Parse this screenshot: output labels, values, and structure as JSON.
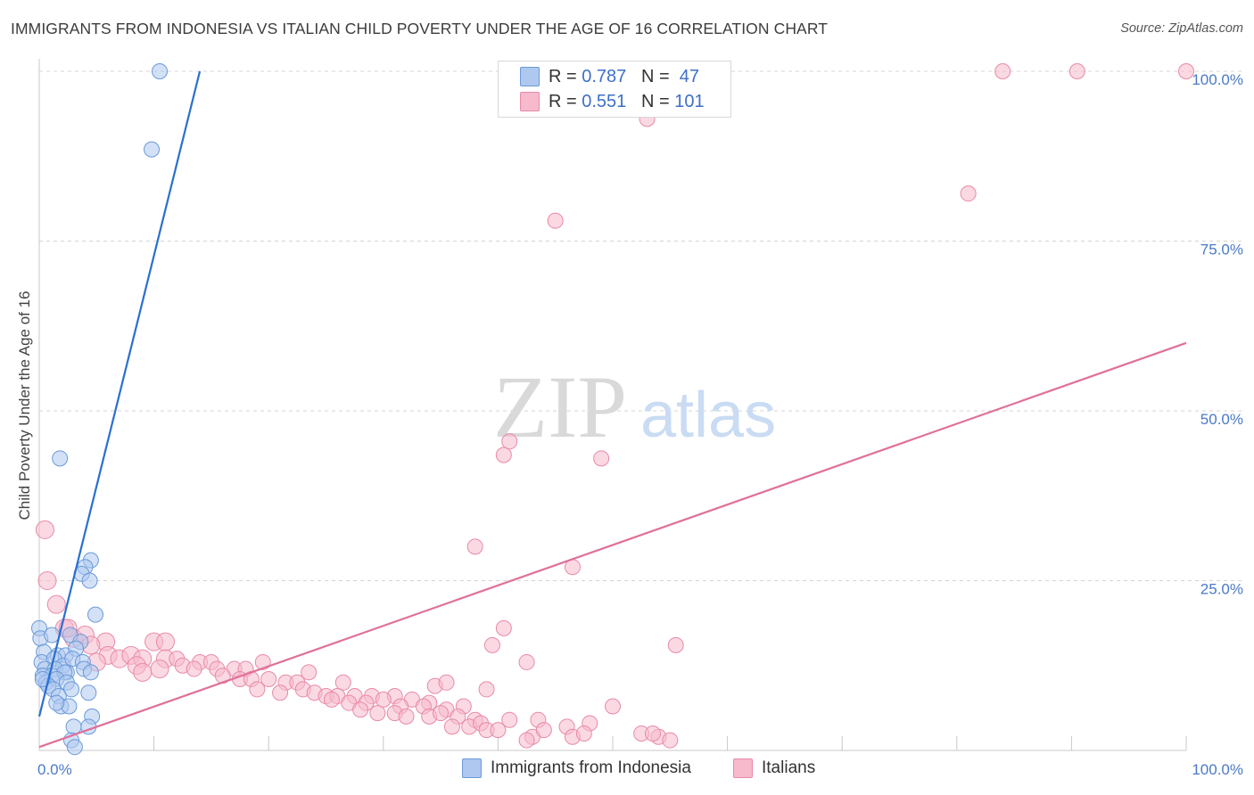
{
  "title": "IMMIGRANTS FROM INDONESIA VS ITALIAN CHILD POVERTY UNDER THE AGE OF 16 CORRELATION CHART",
  "source": "Source: ZipAtlas.com",
  "watermark": {
    "zip": "ZIP",
    "atlas": "atlas"
  },
  "colors": {
    "blue_fill": "#aec8f0",
    "blue_stroke": "#6a9ad8",
    "blue_line": "#2a6fd1",
    "pink_fill": "#f7b9cc",
    "pink_stroke": "#e88aa8",
    "pink_line": "#e0709a",
    "tick_text": "#4a7ac8",
    "grid": "#d4d4d4"
  },
  "legend": {
    "rows": [
      {
        "r_label": "R = ",
        "r_value": "0.787",
        "n_label": "N = ",
        "n_value": "47",
        "series": "blue"
      },
      {
        "r_label": "R = ",
        "r_value": "0.551",
        "n_label": "N = ",
        "n_value": "101",
        "series": "pink"
      }
    ],
    "bottom": [
      "Immigrants from Indonesia",
      "Italians"
    ]
  },
  "chart_data": {
    "type": "scatter",
    "title": "IMMIGRANTS FROM INDONESIA VS ITALIAN CHILD POVERTY UNDER THE AGE OF 16 CORRELATION CHART",
    "xlabel": "",
    "ylabel": "Child Poverty Under the Age of 16",
    "xlim": [
      0,
      100
    ],
    "ylim": [
      0,
      100
    ],
    "x_tick_labels": [
      "0.0%",
      "100.0%"
    ],
    "y_tick_labels": [
      "25.0%",
      "50.0%",
      "75.0%",
      "100.0%"
    ],
    "y_ticks": [
      25,
      50,
      75,
      100
    ],
    "grid": true,
    "series": [
      {
        "name": "Immigrants from Indonesia",
        "color": "blue",
        "trend": {
          "x": [
            0,
            14
          ],
          "y": [
            5,
            100
          ]
        },
        "points": [
          [
            10.5,
            100
          ],
          [
            9.8,
            88.5
          ],
          [
            1.8,
            43
          ],
          [
            4.5,
            28
          ],
          [
            4,
            27
          ],
          [
            3.7,
            26
          ],
          [
            4.4,
            25
          ],
          [
            4.9,
            20
          ],
          [
            0,
            18
          ],
          [
            0.1,
            16.5
          ],
          [
            1.1,
            17
          ],
          [
            2.7,
            17
          ],
          [
            3.6,
            16
          ],
          [
            0.4,
            14.5
          ],
          [
            1.6,
            14
          ],
          [
            2.3,
            14
          ],
          [
            3.2,
            15
          ],
          [
            0.2,
            13
          ],
          [
            1.3,
            13.5
          ],
          [
            2.1,
            12.5
          ],
          [
            2.9,
            13.5
          ],
          [
            3.8,
            13
          ],
          [
            0.5,
            12
          ],
          [
            1.4,
            12
          ],
          [
            2.4,
            11.5
          ],
          [
            3.9,
            12
          ],
          [
            0.3,
            11
          ],
          [
            1.1,
            11
          ],
          [
            2.2,
            11.5
          ],
          [
            0.6,
            10
          ],
          [
            1.5,
            10.5
          ],
          [
            2.4,
            10
          ],
          [
            0.8,
            9.5
          ],
          [
            1.2,
            9
          ],
          [
            4.5,
            11.5
          ],
          [
            2.8,
            9
          ],
          [
            4.3,
            8.5
          ],
          [
            1.7,
            8
          ],
          [
            1.9,
            6.5
          ],
          [
            2.6,
            6.5
          ],
          [
            1.5,
            7
          ],
          [
            4.6,
            5
          ],
          [
            3,
            3.5
          ],
          [
            4.3,
            3.5
          ],
          [
            2.8,
            1.5
          ],
          [
            3.1,
            0.5
          ],
          [
            0.3,
            10.5
          ]
        ]
      },
      {
        "name": "Italians",
        "color": "pink",
        "trend": {
          "x": [
            0,
            100
          ],
          "y": [
            0.5,
            60
          ]
        },
        "points": [
          [
            84,
            100
          ],
          [
            90.5,
            100
          ],
          [
            100,
            100
          ],
          [
            53,
            93
          ],
          [
            81,
            82
          ],
          [
            45,
            78
          ],
          [
            41,
            45.5
          ],
          [
            40.5,
            43.5
          ],
          [
            49,
            43
          ],
          [
            38,
            30
          ],
          [
            46.5,
            27
          ],
          [
            0.5,
            32.5
          ],
          [
            0.7,
            25
          ],
          [
            1.5,
            21.5
          ],
          [
            2.2,
            18
          ],
          [
            3,
            16.5
          ],
          [
            2.5,
            18
          ],
          [
            4,
            17
          ],
          [
            5.8,
            16
          ],
          [
            10,
            16
          ],
          [
            11,
            16
          ],
          [
            40.5,
            18
          ],
          [
            39.5,
            15.5
          ],
          [
            55.5,
            15.5
          ],
          [
            4.5,
            15.5
          ],
          [
            6,
            14
          ],
          [
            7,
            13.5
          ],
          [
            8,
            14
          ],
          [
            9,
            13.5
          ],
          [
            11,
            13.5
          ],
          [
            12,
            13.5
          ],
          [
            14,
            13
          ],
          [
            15,
            13
          ],
          [
            19.5,
            13
          ],
          [
            42.5,
            13
          ],
          [
            5,
            13
          ],
          [
            8.5,
            12.5
          ],
          [
            10.5,
            12
          ],
          [
            12.5,
            12.5
          ],
          [
            13.5,
            12
          ],
          [
            15.5,
            12
          ],
          [
            17,
            12
          ],
          [
            18,
            12
          ],
          [
            23.5,
            11.5
          ],
          [
            9,
            11.5
          ],
          [
            16,
            11
          ],
          [
            17.5,
            10.5
          ],
          [
            18.5,
            10.5
          ],
          [
            20,
            10.5
          ],
          [
            21.5,
            10
          ],
          [
            22.5,
            10
          ],
          [
            26.5,
            10
          ],
          [
            34.5,
            9.5
          ],
          [
            35.5,
            10
          ],
          [
            39,
            9
          ],
          [
            19,
            9
          ],
          [
            21,
            8.5
          ],
          [
            23,
            9
          ],
          [
            24,
            8.5
          ],
          [
            25,
            8
          ],
          [
            26,
            8
          ],
          [
            27.5,
            8
          ],
          [
            29,
            8
          ],
          [
            31,
            8
          ],
          [
            32.5,
            7.5
          ],
          [
            34,
            7
          ],
          [
            25.5,
            7.5
          ],
          [
            27,
            7
          ],
          [
            28.5,
            7
          ],
          [
            30,
            7.5
          ],
          [
            31.5,
            6.5
          ],
          [
            33.5,
            6.5
          ],
          [
            35.5,
            6
          ],
          [
            37,
            6.5
          ],
          [
            50,
            6.5
          ],
          [
            28,
            6
          ],
          [
            29.5,
            5.5
          ],
          [
            31,
            5.5
          ],
          [
            32,
            5
          ],
          [
            34,
            5
          ],
          [
            35,
            5.5
          ],
          [
            36.5,
            5
          ],
          [
            38,
            4.5
          ],
          [
            41,
            4.5
          ],
          [
            43.5,
            4.5
          ],
          [
            36,
            3.5
          ],
          [
            37.5,
            3.5
          ],
          [
            38.5,
            4
          ],
          [
            39,
            3
          ],
          [
            46,
            3.5
          ],
          [
            48,
            4
          ],
          [
            52.5,
            2.5
          ],
          [
            54,
            2
          ],
          [
            43,
            2
          ],
          [
            46.5,
            2
          ],
          [
            40,
            3
          ],
          [
            44,
            3
          ],
          [
            47.5,
            2.5
          ],
          [
            55,
            1.5
          ],
          [
            53.5,
            2.5
          ],
          [
            42.5,
            1.5
          ]
        ]
      }
    ]
  }
}
